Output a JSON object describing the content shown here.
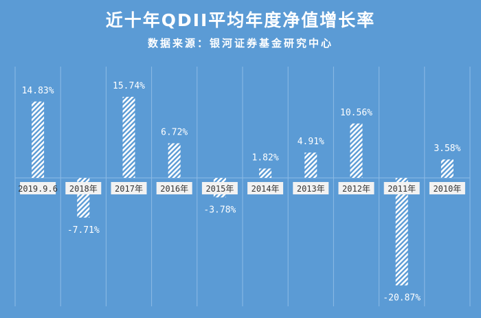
{
  "chart_data": {
    "type": "bar",
    "title": "近十年QDII平均年度净值增长率",
    "subtitle": "数据来源：银河证券基金研究中心",
    "categories": [
      "2019.9.6",
      "2018年",
      "2017年",
      "2016年",
      "2015年",
      "2014年",
      "2013年",
      "2012年",
      "2011年",
      "2010年"
    ],
    "values": [
      14.83,
      -7.71,
      15.74,
      6.72,
      -3.78,
      1.82,
      4.91,
      10.56,
      -20.87,
      3.58
    ],
    "data_labels": [
      "14.83%",
      "-7.71%",
      "15.74%",
      "6.72%",
      "-3.78%",
      "1.82%",
      "4.91%",
      "10.56%",
      "-20.87%",
      "3.58%"
    ],
    "xlabel": "",
    "ylabel": "",
    "ylim": [
      -24,
      22
    ],
    "grid": "vertical separators",
    "legend": "none",
    "colors": {
      "background": "#5b9bd5",
      "bar": "#ffffff",
      "label_box": "#f2f2f2",
      "label_text": "#333333"
    }
  }
}
